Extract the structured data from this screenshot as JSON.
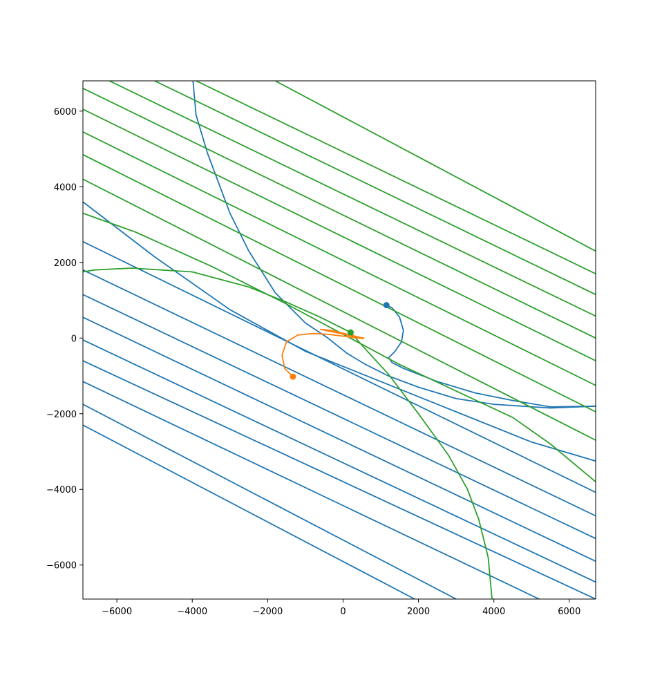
{
  "chart_data": {
    "type": "line",
    "title": "",
    "xlabel": "",
    "ylabel": "",
    "xlim": [
      -6900,
      6700
    ],
    "ylim": [
      -6900,
      6800
    ],
    "xticks": [
      -6000,
      -4000,
      -2000,
      0,
      2000,
      4000,
      6000
    ],
    "yticks": [
      -6000,
      -4000,
      -2000,
      0,
      2000,
      4000,
      6000
    ],
    "xtick_labels": [
      "−6000",
      "−4000",
      "−2000",
      "0",
      "2000",
      "4000",
      "6000"
    ],
    "ytick_labels": [
      "−6000",
      "−4000",
      "−2000",
      "0",
      "2000",
      "4000",
      "6000"
    ],
    "grid": false,
    "colors": {
      "blue": "#1f77b4",
      "orange": "#ff7f0e",
      "green": "#2ca02c"
    },
    "series": [
      {
        "color": "blue",
        "kind": "curve",
        "points": [
          [
            -3980,
            6800
          ],
          [
            -3900,
            5900
          ],
          [
            -3600,
            4900
          ],
          [
            -3000,
            3300
          ],
          [
            -2500,
            2300
          ],
          [
            -1800,
            1200
          ],
          [
            -1000,
            400
          ],
          [
            -400,
            0
          ],
          [
            100,
            -400
          ],
          [
            600,
            -700
          ],
          [
            1200,
            -1000
          ],
          [
            2000,
            -1300
          ],
          [
            3000,
            -1600
          ],
          [
            4000,
            -1750
          ],
          [
            5500,
            -1850
          ],
          [
            6700,
            -1800
          ]
        ]
      },
      {
        "color": "blue",
        "kind": "curve",
        "points": [
          [
            1150,
            870
          ],
          [
            1300,
            800
          ],
          [
            1500,
            550
          ],
          [
            1600,
            200
          ],
          [
            1550,
            -100
          ],
          [
            1380,
            -350
          ],
          [
            1210,
            -520
          ],
          [
            1300,
            -650
          ],
          [
            1600,
            -800
          ],
          [
            2500,
            -1150
          ],
          [
            3500,
            -1450
          ],
          [
            4500,
            -1650
          ],
          [
            5500,
            -1820
          ],
          [
            6700,
            -1800
          ]
        ]
      },
      {
        "color": "blue",
        "kind": "line",
        "points": [
          [
            -6900,
            3600
          ],
          [
            -5000,
            2150
          ],
          [
            -3000,
            750
          ],
          [
            -1000,
            -350
          ],
          [
            1000,
            -1150
          ],
          [
            3000,
            -1950
          ],
          [
            5000,
            -2750
          ],
          [
            6700,
            -3250
          ]
        ]
      },
      {
        "color": "blue",
        "kind": "line",
        "points": [
          [
            -6900,
            2550
          ],
          [
            6700,
            -4080
          ]
        ]
      },
      {
        "color": "blue",
        "kind": "line",
        "points": [
          [
            -6900,
            1800
          ],
          [
            6700,
            -4700
          ]
        ]
      },
      {
        "color": "blue",
        "kind": "line",
        "points": [
          [
            -6900,
            1150
          ],
          [
            6700,
            -5300
          ]
        ]
      },
      {
        "color": "blue",
        "kind": "line",
        "points": [
          [
            -6900,
            550
          ],
          [
            6700,
            -5900
          ]
        ]
      },
      {
        "color": "blue",
        "kind": "line",
        "points": [
          [
            -6900,
            -50
          ],
          [
            6700,
            -6450
          ]
        ]
      },
      {
        "color": "blue",
        "kind": "line",
        "points": [
          [
            -6900,
            -600
          ],
          [
            6700,
            -6900
          ]
        ]
      },
      {
        "color": "blue",
        "kind": "line",
        "points": [
          [
            -6900,
            -1150
          ],
          [
            5200,
            -6900
          ]
        ]
      },
      {
        "color": "blue",
        "kind": "line",
        "points": [
          [
            -6900,
            -1750
          ],
          [
            3000,
            -6900
          ]
        ]
      },
      {
        "color": "blue",
        "kind": "line",
        "points": [
          [
            -6900,
            -2300
          ],
          [
            1900,
            -6900
          ]
        ]
      },
      {
        "color": "green",
        "kind": "curve",
        "points": [
          [
            -6900,
            1750
          ],
          [
            -6600,
            1800
          ],
          [
            -5600,
            1850
          ],
          [
            -4000,
            1750
          ],
          [
            -2500,
            1350
          ],
          [
            -1500,
            950
          ],
          [
            -600,
            550
          ],
          [
            200,
            150
          ],
          [
            600,
            -300
          ],
          [
            1200,
            -950
          ],
          [
            2000,
            -2000
          ],
          [
            2800,
            -3100
          ],
          [
            3300,
            -4000
          ],
          [
            3600,
            -4800
          ],
          [
            3850,
            -5800
          ],
          [
            3950,
            -6900
          ]
        ]
      },
      {
        "color": "green",
        "kind": "curve",
        "points": [
          [
            -6900,
            3300
          ],
          [
            -5500,
            2800
          ],
          [
            -3500,
            1900
          ],
          [
            -1500,
            900
          ],
          [
            0,
            100
          ],
          [
            1500,
            -700
          ],
          [
            3000,
            -1400
          ],
          [
            4500,
            -2100
          ],
          [
            5500,
            -2800
          ],
          [
            6700,
            -3800
          ]
        ]
      },
      {
        "color": "green",
        "kind": "line",
        "points": [
          [
            -6900,
            4200
          ],
          [
            6700,
            -2700
          ]
        ]
      },
      {
        "color": "green",
        "kind": "line",
        "points": [
          [
            -6900,
            4850
          ],
          [
            6700,
            -1950
          ]
        ]
      },
      {
        "color": "green",
        "kind": "line",
        "points": [
          [
            -6900,
            5450
          ],
          [
            6700,
            -1250
          ]
        ]
      },
      {
        "color": "green",
        "kind": "line",
        "points": [
          [
            -6900,
            6050
          ],
          [
            6700,
            -600
          ]
        ]
      },
      {
        "color": "green",
        "kind": "line",
        "points": [
          [
            -6900,
            6600
          ],
          [
            6700,
            0
          ]
        ]
      },
      {
        "color": "green",
        "kind": "line",
        "points": [
          [
            -6200,
            6800
          ],
          [
            6700,
            580
          ]
        ]
      },
      {
        "color": "green",
        "kind": "line",
        "points": [
          [
            -5000,
            6800
          ],
          [
            6700,
            1150
          ]
        ]
      },
      {
        "color": "green",
        "kind": "line",
        "points": [
          [
            -3900,
            6800
          ],
          [
            6700,
            1700
          ]
        ]
      },
      {
        "color": "green",
        "kind": "line",
        "points": [
          [
            -1800,
            6800
          ],
          [
            6700,
            2300
          ]
        ]
      },
      {
        "color": "orange",
        "kind": "curve",
        "points": [
          [
            -1330,
            -1020
          ],
          [
            -1550,
            -800
          ],
          [
            -1620,
            -450
          ],
          [
            -1500,
            -100
          ],
          [
            -1200,
            80
          ],
          [
            -800,
            120
          ],
          [
            -400,
            100
          ],
          [
            0,
            50
          ],
          [
            300,
            10
          ],
          [
            550,
            -10
          ],
          [
            200,
            80
          ],
          [
            -300,
            200
          ],
          [
            -600,
            230
          ],
          [
            -200,
            150
          ],
          [
            300,
            40
          ],
          [
            550,
            0
          ]
        ]
      }
    ],
    "markers": [
      {
        "color": "blue",
        "x": 1150,
        "y": 870
      },
      {
        "color": "green",
        "x": 200,
        "y": 150
      },
      {
        "color": "orange",
        "x": -1330,
        "y": -1020
      }
    ]
  }
}
